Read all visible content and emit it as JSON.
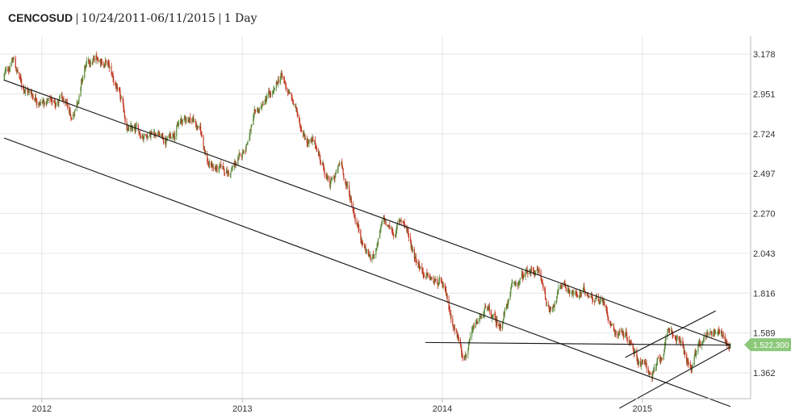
{
  "title": {
    "symbol": "CENCOSUD",
    "range": "10/24/2011-06/11/2015",
    "interval": "1 Day"
  },
  "chart_data": {
    "type": "candlestick",
    "title": "CENCOSUD | 10/24/2011-06/11/2015 | 1 Day",
    "xlabel": "",
    "ylabel": "",
    "x_range": [
      "2011-10-24",
      "2015-06-11"
    ],
    "ylim": [
      1.25,
      3.25
    ],
    "y_axis_position": "right",
    "y_ticks": [
      1.362,
      1.589,
      1.816,
      2.043,
      2.27,
      2.497,
      2.724,
      2.951,
      3.178
    ],
    "y_tick_labels": [
      "1.362",
      "1.589",
      "1.816",
      "2.043",
      "2.270",
      "2.497",
      "2.724",
      "2.951",
      "3.178"
    ],
    "x_ticks": [
      "2012-01-01",
      "2013-01-01",
      "2014-01-01",
      "2015-01-01"
    ],
    "x_tick_labels": [
      "2012",
      "2013",
      "2014",
      "2015"
    ],
    "grid": true,
    "up_color": "#5a8a3a",
    "down_color": "#c0361f",
    "last_price": 1.5223,
    "last_price_label": "1.522,300",
    "last_price_color": "#8cc97a",
    "price_path": [
      [
        "2011-10-24",
        3.05
      ],
      [
        "2011-11-10",
        3.15
      ],
      [
        "2011-11-25",
        3.0
      ],
      [
        "2011-12-15",
        2.95
      ],
      [
        "2012-01-10",
        2.9
      ],
      [
        "2012-02-05",
        2.92
      ],
      [
        "2012-02-25",
        2.8
      ],
      [
        "2012-03-20",
        3.1
      ],
      [
        "2012-04-15",
        3.15
      ],
      [
        "2012-04-30",
        3.12
      ],
      [
        "2012-05-20",
        2.95
      ],
      [
        "2012-06-05",
        2.75
      ],
      [
        "2012-07-01",
        2.72
      ],
      [
        "2012-07-25",
        2.75
      ],
      [
        "2012-08-15",
        2.68
      ],
      [
        "2012-09-05",
        2.78
      ],
      [
        "2012-09-30",
        2.82
      ],
      [
        "2012-10-15",
        2.75
      ],
      [
        "2012-11-01",
        2.55
      ],
      [
        "2012-11-20",
        2.52
      ],
      [
        "2012-12-10",
        2.5
      ],
      [
        "2012-12-31",
        2.6
      ],
      [
        "2013-01-25",
        2.82
      ],
      [
        "2013-02-15",
        2.92
      ],
      [
        "2013-03-01",
        2.95
      ],
      [
        "2013-03-12",
        3.05
      ],
      [
        "2013-03-28",
        2.95
      ],
      [
        "2013-04-25",
        2.72
      ],
      [
        "2013-05-20",
        2.62
      ],
      [
        "2013-06-10",
        2.42
      ],
      [
        "2013-06-30",
        2.55
      ],
      [
        "2013-07-20",
        2.32
      ],
      [
        "2013-08-10",
        2.1
      ],
      [
        "2013-08-25",
        2.0
      ],
      [
        "2013-09-15",
        2.22
      ],
      [
        "2013-10-05",
        2.15
      ],
      [
        "2013-10-20",
        2.25
      ],
      [
        "2013-11-10",
        2.05
      ],
      [
        "2013-12-05",
        1.9
      ],
      [
        "2014-01-01",
        1.85
      ],
      [
        "2014-01-20",
        1.65
      ],
      [
        "2014-02-10",
        1.47
      ],
      [
        "2014-03-01",
        1.6
      ],
      [
        "2014-03-20",
        1.72
      ],
      [
        "2014-04-15",
        1.62
      ],
      [
        "2014-05-10",
        1.85
      ],
      [
        "2014-06-05",
        1.92
      ],
      [
        "2014-06-25",
        1.95
      ],
      [
        "2014-07-15",
        1.72
      ],
      [
        "2014-08-10",
        1.88
      ],
      [
        "2014-09-05",
        1.8
      ],
      [
        "2014-09-30",
        1.82
      ],
      [
        "2014-10-20",
        1.78
      ],
      [
        "2014-11-10",
        1.62
      ],
      [
        "2014-12-05",
        1.58
      ],
      [
        "2014-12-25",
        1.45
      ],
      [
        "2015-01-20",
        1.35
      ],
      [
        "2015-02-05",
        1.45
      ],
      [
        "2015-02-20",
        1.6
      ],
      [
        "2015-03-10",
        1.55
      ],
      [
        "2015-03-30",
        1.38
      ],
      [
        "2015-04-15",
        1.5
      ],
      [
        "2015-05-01",
        1.6
      ],
      [
        "2015-05-20",
        1.62
      ],
      [
        "2015-06-01",
        1.55
      ],
      [
        "2015-06-11",
        1.52
      ]
    ],
    "trend_lines": [
      {
        "name": "channel-upper",
        "from": [
          "2011-10-24",
          3.03
        ],
        "to": [
          "2015-06-11",
          1.52
        ]
      },
      {
        "name": "channel-lower",
        "from": [
          "2011-10-24",
          2.7
        ],
        "to": [
          "2015-06-11",
          1.17
        ]
      },
      {
        "name": "support-horizontal",
        "from": [
          "2013-12-01",
          1.535
        ],
        "to": [
          "2015-06-11",
          1.52
        ]
      },
      {
        "name": "rising-upper",
        "from": [
          "2014-12-01",
          1.45
        ],
        "to": [
          "2015-05-15",
          1.715
        ]
      },
      {
        "name": "rising-lower",
        "from": [
          "2014-11-20",
          1.16
        ],
        "to": [
          "2015-06-11",
          1.51
        ]
      }
    ]
  },
  "colors": {
    "grid": "#e6e6e6",
    "axis": "#bbbbbb",
    "trend": "#111111"
  }
}
